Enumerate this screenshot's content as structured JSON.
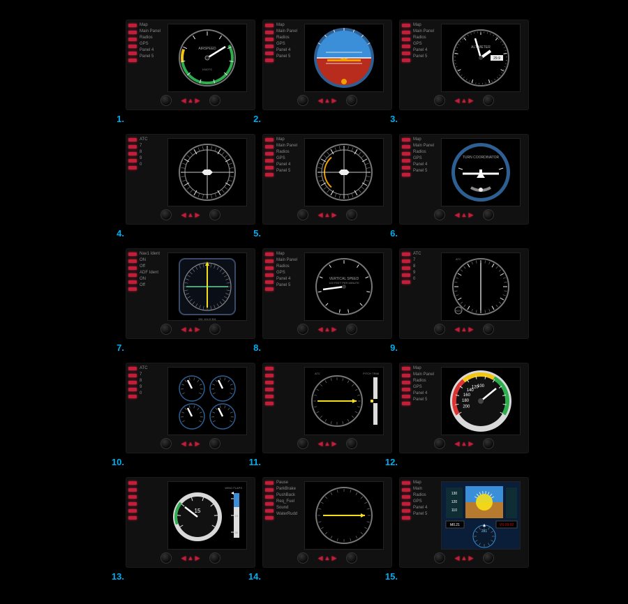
{
  "colors": {
    "bg": "#000000",
    "panel": "#111111",
    "led": "#c11e3a",
    "accent": "#00aef0",
    "needle_white": "#ffffff",
    "needle_yellow": "#f7e017",
    "arc_green": "#2eae4e",
    "arc_yellow": "#f3c613",
    "sky": "#3b8fd8",
    "sky_ring": "#2e5f93",
    "ground": "#b82c1e",
    "grey": "#777777",
    "altimeter": "#d9d9d9"
  },
  "menu_std": [
    "Map",
    "Main Panel",
    "Radios",
    "GPS",
    "Panel 4",
    "Panel 5"
  ],
  "menu_atc": [
    "ATC",
    "7",
    "8",
    "9",
    "0"
  ],
  "menu_adf": [
    "Nav1 Ident",
    "ON",
    "Off",
    "ADF Ident",
    "ON",
    "Off"
  ],
  "menu_ctrl": [
    "Pause",
    "ParkBrake",
    "PushBack",
    "Req_Fuel",
    "Sound",
    "WaterRudd"
  ],
  "menu_15": [
    "Map",
    "Main",
    "Radios",
    "GPS",
    "Panel 4",
    "Panel 5"
  ],
  "items": [
    {
      "num": "1.",
      "menu": "std",
      "gauge": "airspeed",
      "title": "AIRSPEED",
      "sub": "KNOTS"
    },
    {
      "num": "2.",
      "menu": "std",
      "gauge": "attitude"
    },
    {
      "num": "3.",
      "menu": "std",
      "gauge": "altimeter",
      "title": "ALTIMETER",
      "setting": "29.9"
    },
    {
      "num": "4.",
      "menu": "atc",
      "gauge": "heading"
    },
    {
      "num": "5.",
      "menu": "std",
      "gauge": "heading_w"
    },
    {
      "num": "6.",
      "menu": "std",
      "gauge": "turn",
      "title": "TURN COORDINATOR"
    },
    {
      "num": "7.",
      "menu": "adf",
      "gauge": "hsi",
      "freq": "281  104.5   351"
    },
    {
      "num": "8.",
      "menu": "std",
      "gauge": "vsi",
      "title": "VERTICAL SPEED"
    },
    {
      "num": "9.",
      "menu": "atc",
      "gauge": "adf",
      "title": "ATC"
    },
    {
      "num": "10.",
      "menu": "atc",
      "gauge": "fourpack"
    },
    {
      "num": "11.",
      "menu": "none",
      "gauge": "pitchtrim",
      "title": "ATC",
      "sub": "PITCH TRIM"
    },
    {
      "num": "12.",
      "menu": "std",
      "gauge": "rpm",
      "values": [
        200,
        180,
        160,
        140,
        120,
        100
      ]
    },
    {
      "num": "13.",
      "menu": "none",
      "gauge": "egauge",
      "title": "WING\nFLAPS",
      "marks": [
        "5",
        "15",
        "30"
      ]
    },
    {
      "num": "14.",
      "menu": "ctrl",
      "gauge": "plain"
    },
    {
      "num": "15.",
      "menu": "m15",
      "gauge": "pfd"
    }
  ]
}
